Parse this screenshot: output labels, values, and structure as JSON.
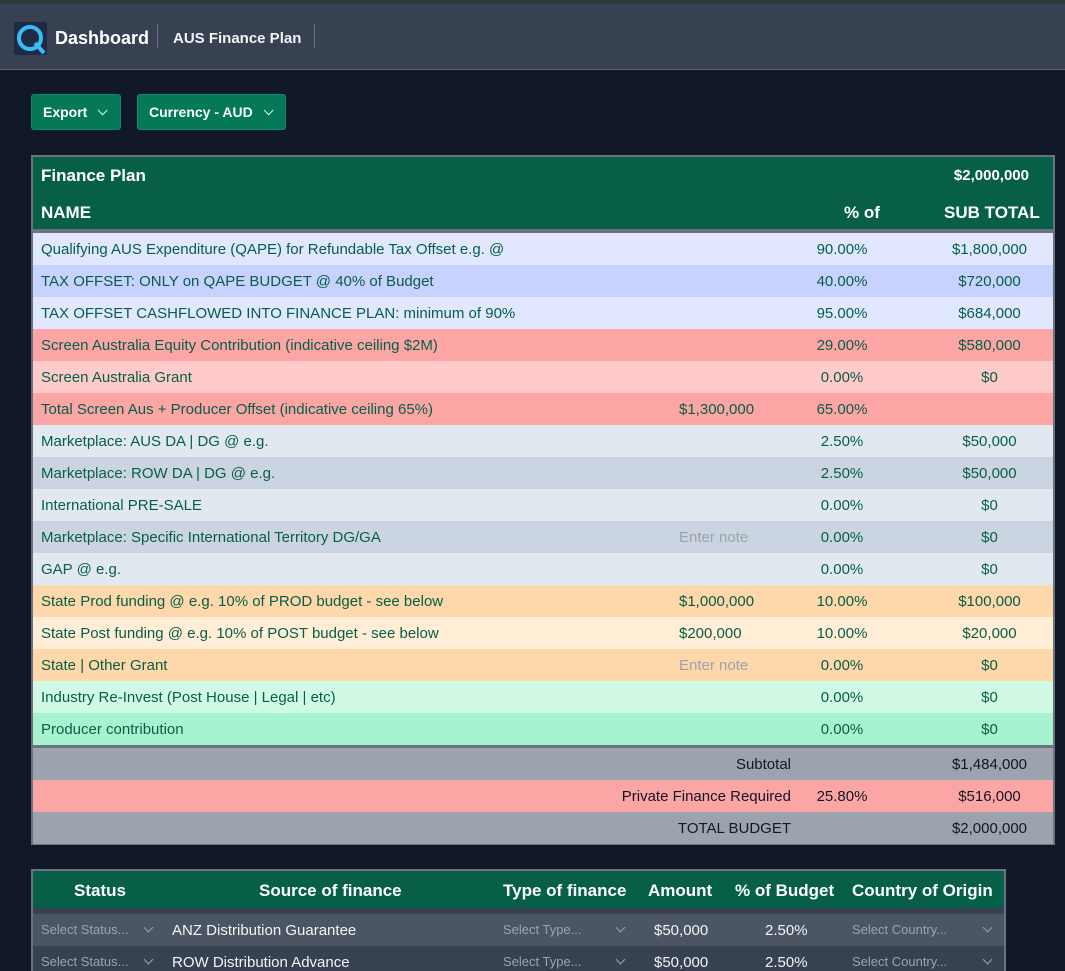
{
  "header": {
    "title": "Dashboard",
    "subtitle": "AUS Finance Plan"
  },
  "toolbar": {
    "export_label": "Export",
    "currency_label": "Currency - AUD"
  },
  "finance_plan": {
    "title": "Finance Plan",
    "total": "$2,000,000",
    "columns": {
      "name": "NAME",
      "pct": "% of",
      "sub": "SUB TOTAL"
    },
    "rows": [
      {
        "name": "Qualifying AUS Expenditure (QAPE) for Refundable Tax Offset e.g. @",
        "note": "",
        "pct": "90.00%",
        "sub": "$1,800,000",
        "bg": "#e0e7ff"
      },
      {
        "name": "TAX OFFSET: ONLY on QAPE BUDGET @ 40% of Budget",
        "note": "",
        "pct": "40.00%",
        "sub": "$720,000",
        "bg": "#c7d2fe"
      },
      {
        "name": "TAX OFFSET CASHFLOWED INTO FINANCE PLAN: minimum of 90%",
        "note": "",
        "pct": "95.00%",
        "sub": "$684,000",
        "bg": "#e0e7ff"
      },
      {
        "name": "Screen Australia Equity Contribution (indicative ceiling $2M)",
        "note": "",
        "pct": "29.00%",
        "sub": "$580,000",
        "bg": "#fca5a5"
      },
      {
        "name": "Screen Australia Grant",
        "note": "",
        "pct": "0.00%",
        "sub": "$0",
        "bg": "#fecaca"
      },
      {
        "name": "Total Screen Aus + Producer Offset (indicative ceiling 65%)",
        "note": "$1,300,000",
        "pct": "65.00%",
        "sub": "",
        "bg": "#fca5a5"
      },
      {
        "name": "Marketplace: AUS DA | DG @ e.g.",
        "note": "",
        "pct": "2.50%",
        "sub": "$50,000",
        "bg": "#e2e8f0"
      },
      {
        "name": "Marketplace: ROW DA | DG @ e.g.",
        "note": "",
        "pct": "2.50%",
        "sub": "$50,000",
        "bg": "#cbd5e1"
      },
      {
        "name": "International PRE-SALE",
        "note": "",
        "pct": "0.00%",
        "sub": "$0",
        "bg": "#e2e8f0"
      },
      {
        "name": "Marketplace: Specific International Territory DG/GA",
        "note": "Enter note",
        "placeholder": true,
        "pct": "0.00%",
        "sub": "$0",
        "bg": "#cbd5e1"
      },
      {
        "name": "GAP @ e.g.",
        "note": "",
        "pct": "0.00%",
        "sub": "$0",
        "bg": "#e2e8f0"
      },
      {
        "name": "State Prod funding @ e.g. 10% of PROD budget - see below",
        "note": "$1,000,000",
        "pct": "10.00%",
        "sub": "$100,000",
        "bg": "#fed7aa"
      },
      {
        "name": "State Post funding @ e.g. 10% of POST budget - see below",
        "note": "$200,000",
        "pct": "10.00%",
        "sub": "$20,000",
        "bg": "#ffedd5"
      },
      {
        "name": "State | Other Grant",
        "note": "Enter note",
        "placeholder": true,
        "pct": "0.00%",
        "sub": "$0",
        "bg": "#fed7aa"
      },
      {
        "name": "Industry Re-Invest (Post House | Legal | etc)",
        "note": "",
        "pct": "0.00%",
        "sub": "$0",
        "bg": "#d1fae5"
      },
      {
        "name": "Producer contribution",
        "note": "",
        "pct": "0.00%",
        "sub": "$0",
        "bg": "#a7f3d0"
      }
    ],
    "totals": [
      {
        "label": "Subtotal",
        "pct": "",
        "sub": "$1,484,000",
        "bg": "#9ca3af"
      },
      {
        "label": "Private Finance Required",
        "pct": "25.80%",
        "sub": "$516,000",
        "bg": "#fca5a5"
      },
      {
        "label": "TOTAL BUDGET",
        "pct": "",
        "sub": "$2,000,000",
        "bg": "#9ca3af"
      }
    ]
  },
  "sources": {
    "columns": [
      "Status",
      "Source of finance",
      "Type of finance",
      "Amount",
      "% of Budget",
      "Country of Origin"
    ],
    "rows": [
      {
        "status": "Select Status...",
        "source": "ANZ Distribution Guarantee",
        "type": "Select Type...",
        "amount": "$50,000",
        "pct": "2.50%",
        "country": "Select Country...",
        "bg": "#4b5563"
      },
      {
        "status": "Select Status...",
        "source": "ROW Distribution Advance",
        "type": "Select Type...",
        "amount": "$50,000",
        "pct": "2.50%",
        "country": "Select Country...",
        "bg": "#374151"
      }
    ]
  }
}
